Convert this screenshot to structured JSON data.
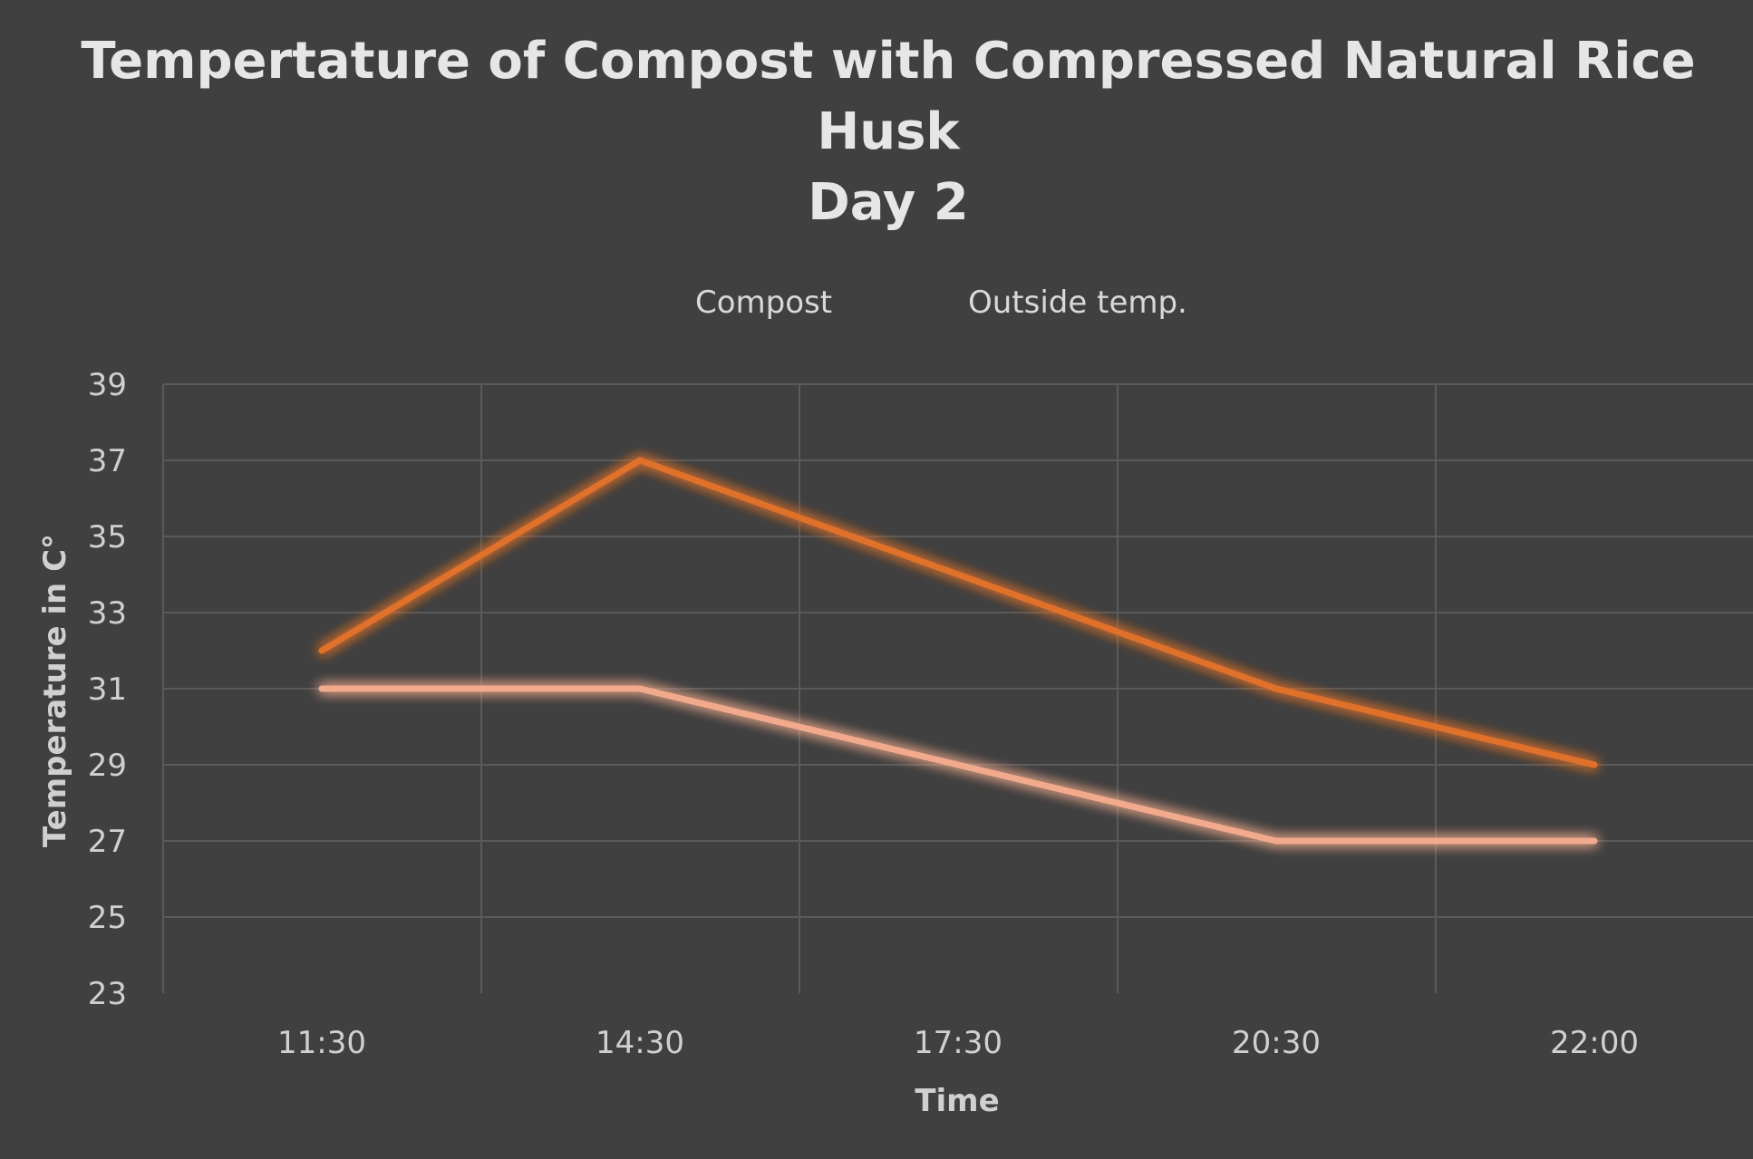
{
  "chart_data": {
    "type": "line",
    "title": [
      "Tempertature of Compost with Compressed Natural Rice",
      "Husk",
      "Day 2"
    ],
    "xlabel": "Time",
    "ylabel": "Temperature in C°",
    "categories": [
      "11:30",
      "14:30",
      "17:30",
      "20:30",
      "22:00"
    ],
    "ylim": [
      23,
      39
    ],
    "yticks": [
      23,
      25,
      27,
      29,
      31,
      33,
      35,
      37,
      39
    ],
    "grid": true,
    "legend_position": "top-center",
    "series": [
      {
        "name": "Compost",
        "color": "#e0712a",
        "values": [
          32,
          37,
          34,
          31,
          29
        ]
      },
      {
        "name": "Outside temp.",
        "color": "#f2aa8c",
        "values": [
          31,
          31,
          29,
          27,
          27
        ]
      }
    ]
  }
}
